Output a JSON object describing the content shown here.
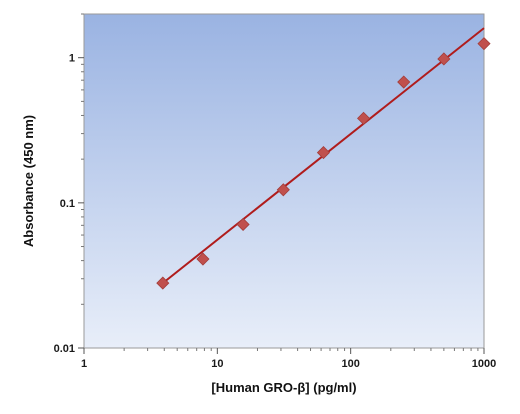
{
  "chart_data": {
    "type": "scatter",
    "xlabel": "[Human GRO-β] (pg/ml)",
    "ylabel": "Absorbance (450 nm)",
    "x_scale": "log",
    "y_scale": "log",
    "xlim": [
      1,
      1000
    ],
    "ylim": [
      0.01,
      2
    ],
    "x_ticks": [
      {
        "value": 1,
        "label": "1"
      },
      {
        "value": 10,
        "label": "10"
      },
      {
        "value": 100,
        "label": "100"
      },
      {
        "value": 1000,
        "label": "1000"
      }
    ],
    "y_ticks": [
      {
        "value": 0.01,
        "label": "0.01"
      },
      {
        "value": 0.1,
        "label": "0.1"
      },
      {
        "value": 1,
        "label": "1"
      }
    ],
    "grid": false,
    "legend": "none",
    "points": [
      {
        "x": 3.9,
        "y": 0.028
      },
      {
        "x": 7.8,
        "y": 0.041
      },
      {
        "x": 15.6,
        "y": 0.071
      },
      {
        "x": 31.25,
        "y": 0.123
      },
      {
        "x": 62.5,
        "y": 0.222
      },
      {
        "x": 125,
        "y": 0.382
      },
      {
        "x": 250,
        "y": 0.68
      },
      {
        "x": 500,
        "y": 0.98
      },
      {
        "x": 1000,
        "y": 1.25
      }
    ],
    "fit_line": [
      {
        "x": 3.9,
        "y": 0.028
      },
      {
        "x": 1000,
        "y": 1.6
      }
    ],
    "colors": {
      "marker": "#c0504d",
      "line": "#b01c1c",
      "background_top": "#9ab3e2",
      "background_bottom": "#e8eef9"
    }
  }
}
